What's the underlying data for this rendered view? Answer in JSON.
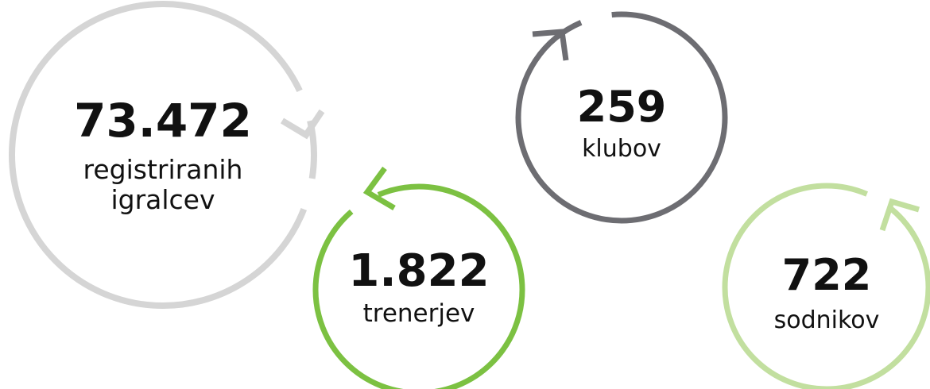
{
  "stats": [
    {
      "value": "73.472",
      "label_lines": [
        "registriranih",
        "igralcev"
      ]
    },
    {
      "value": "1.822",
      "label_lines": [
        "trenerjev"
      ]
    },
    {
      "value": "259",
      "label_lines": [
        "klubov"
      ]
    },
    {
      "value": "722",
      "label_lines": [
        "sodnikov"
      ]
    }
  ]
}
